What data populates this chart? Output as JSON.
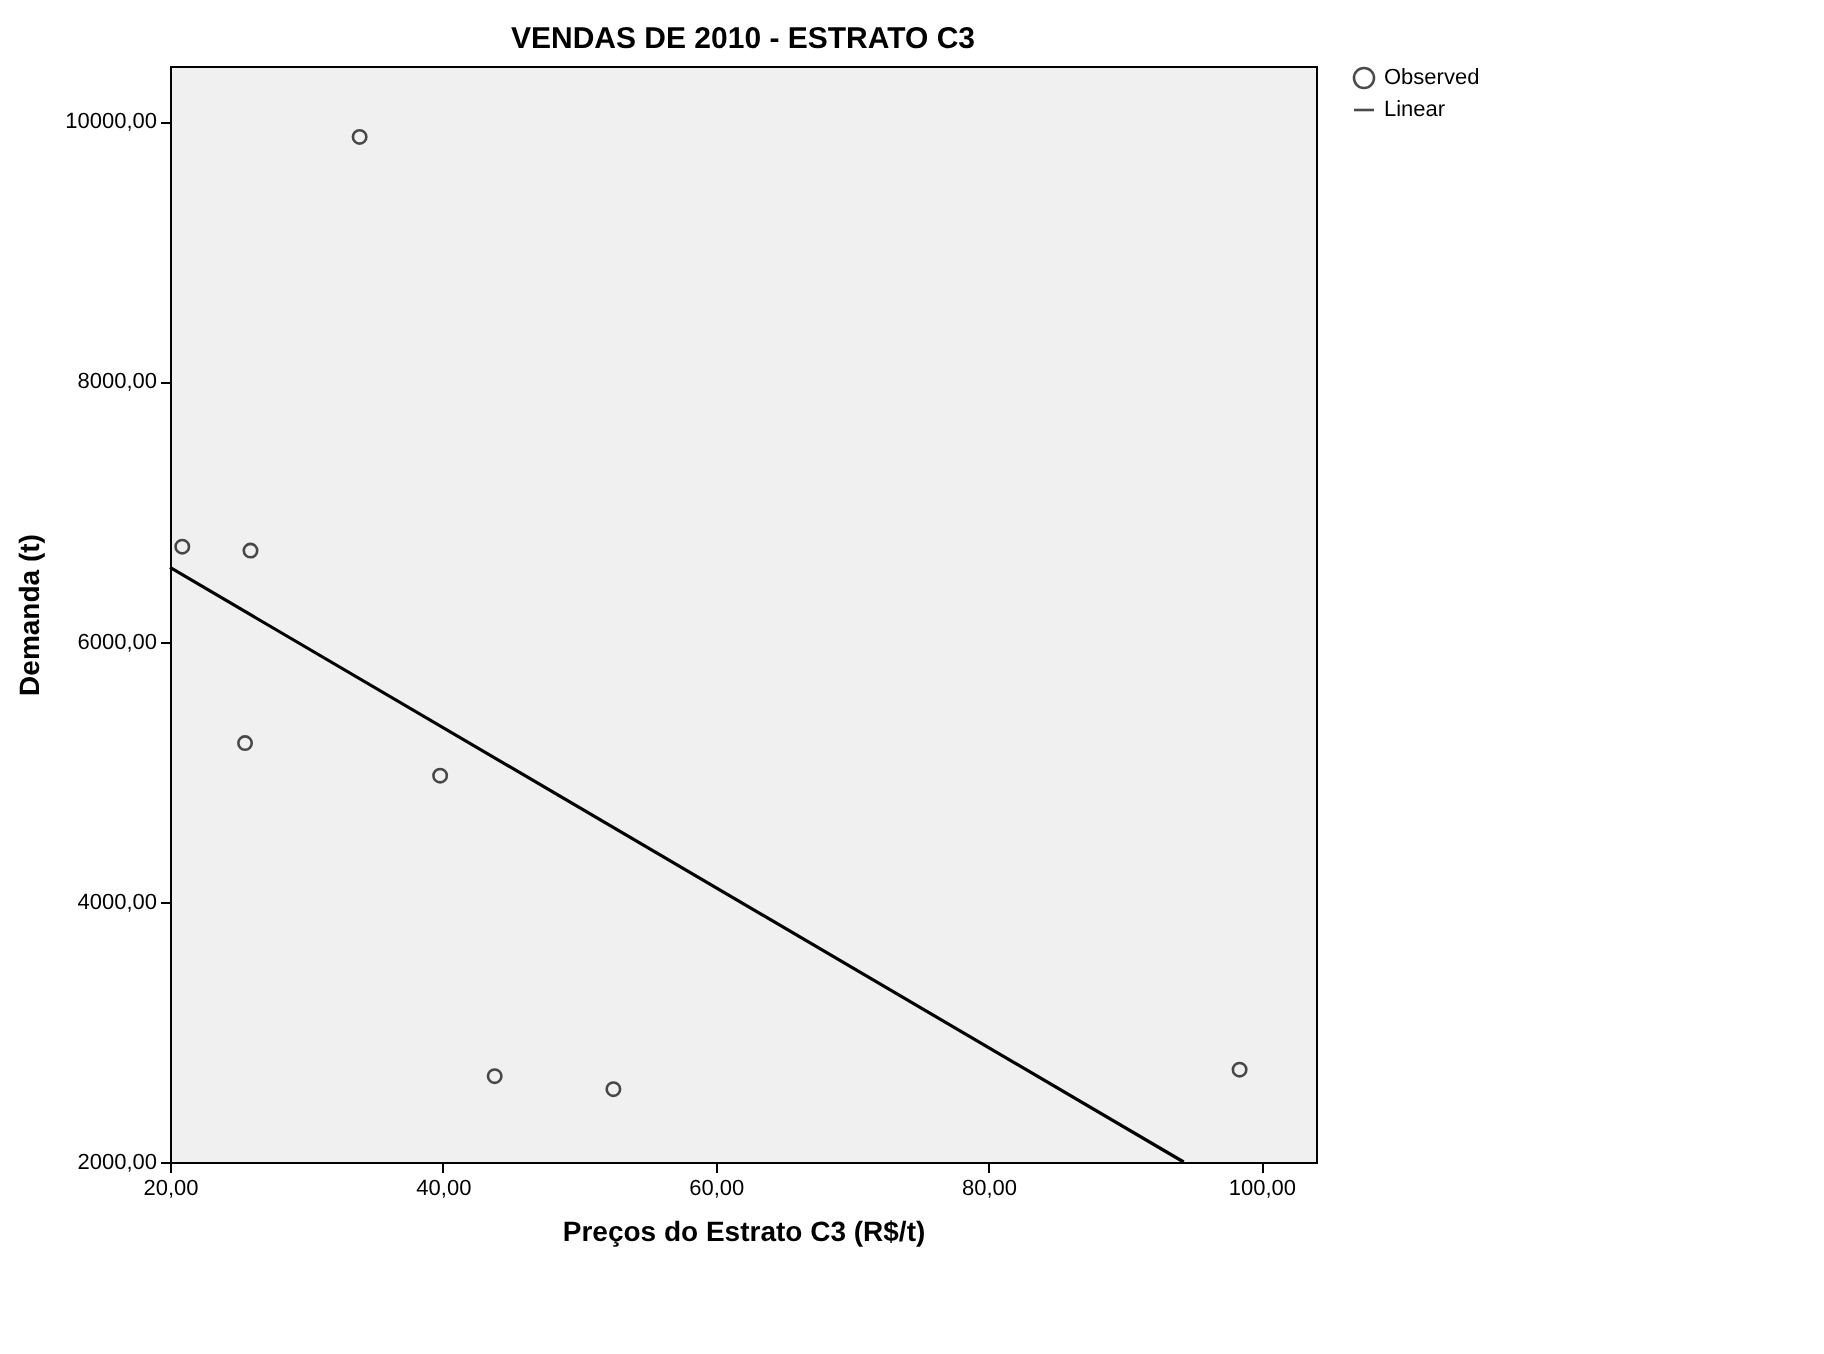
{
  "chart_data": {
    "type": "scatter",
    "title": "VENDAS DE 2010 - ESTRATO C3",
    "xlabel": "Preços do Estrato C3 (R$/t)",
    "ylabel": "Demanda (t)",
    "x": [
      20.9,
      25.9,
      25.5,
      33.9,
      39.8,
      43.8,
      52.5,
      98.4
    ],
    "series": [
      {
        "name": "Observed",
        "color": "#000000",
        "marker": "circle",
        "values": [
          6730,
          6700,
          5220,
          9880,
          4970,
          2660,
          2560,
          2710
        ]
      },
      {
        "name": "Linear",
        "type": "line",
        "color": "#000000",
        "line_style": "solid",
        "x": [
          20,
          94.3
        ],
        "values": [
          6570,
          2000
        ]
      }
    ],
    "xlim": [
      20,
      104
    ],
    "ylim": [
      2000,
      10425
    ],
    "xticks": [
      {
        "value": 20,
        "label": "20,00"
      },
      {
        "value": 40,
        "label": "40,00"
      },
      {
        "value": 60,
        "label": "60,00"
      },
      {
        "value": 80,
        "label": "80,00"
      },
      {
        "value": 100,
        "label": "100,00"
      }
    ],
    "yticks": [
      {
        "value": 2000,
        "label": "2000,00"
      },
      {
        "value": 4000,
        "label": "4000,00"
      },
      {
        "value": 6000,
        "label": "6000,00"
      },
      {
        "value": 8000,
        "label": "8000,00"
      },
      {
        "value": 10000,
        "label": "10000,00"
      }
    ],
    "grid": false,
    "legend": "top right"
  }
}
